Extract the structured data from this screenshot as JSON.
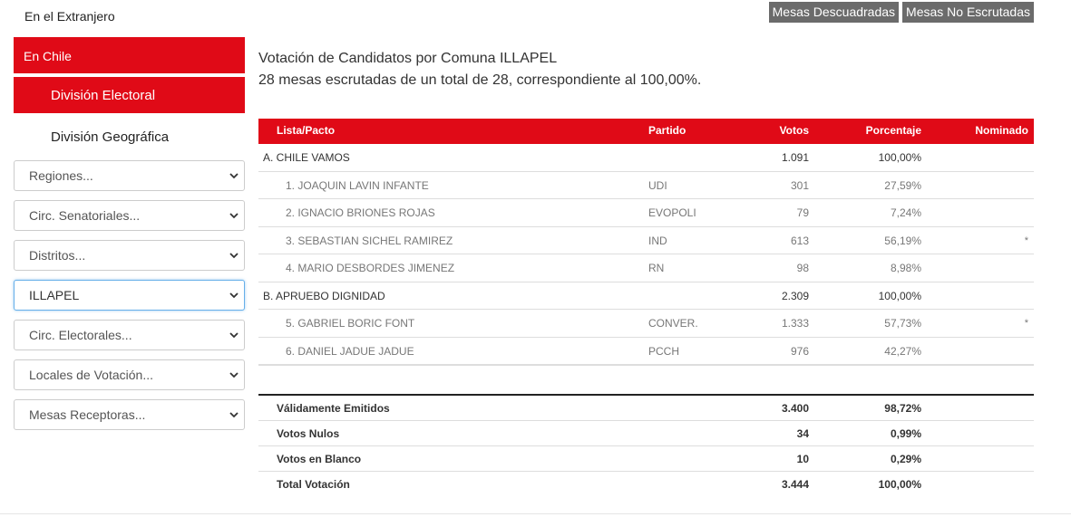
{
  "sidebar": {
    "abroad_label": "En el Extranjero",
    "chile_label": "En Chile",
    "division_electoral_label": "División Electoral",
    "division_geografica_label": "División Geográfica",
    "selects": [
      {
        "label": "Regiones..."
      },
      {
        "label": "Circ. Senatoriales..."
      },
      {
        "label": "Distritos..."
      },
      {
        "label": "ILLAPEL"
      },
      {
        "label": "Circ. Electorales..."
      },
      {
        "label": "Locales de Votación..."
      },
      {
        "label": "Mesas Receptoras..."
      }
    ]
  },
  "top_buttons": {
    "descuadradas": "Mesas Descuadradas",
    "no_escrutadas": "Mesas No Escrutadas"
  },
  "heading": {
    "title": "Votación de Candidatos por Comuna ILLAPEL",
    "subtitle": "28 mesas escrutadas de un total de 28, correspondiente al 100,00%."
  },
  "table": {
    "headers": {
      "lista": "Lista/Pacto",
      "partido": "Partido",
      "votos": "Votos",
      "porcentaje": "Porcentaje",
      "nominado": "Nominado"
    },
    "rows": [
      {
        "name": "A. CHILE VAMOS",
        "partido": "",
        "votos": "1.091",
        "porcentaje": "100,00%",
        "nominado": ""
      },
      {
        "name": "1. JOAQUIN LAVIN INFANTE",
        "partido": "UDI",
        "votos": "301",
        "porcentaje": "27,59%",
        "nominado": ""
      },
      {
        "name": "2. IGNACIO BRIONES ROJAS",
        "partido": "EVOPOLI",
        "votos": "79",
        "porcentaje": "7,24%",
        "nominado": ""
      },
      {
        "name": "3. SEBASTIAN SICHEL RAMIREZ",
        "partido": "IND",
        "votos": "613",
        "porcentaje": "56,19%",
        "nominado": "*"
      },
      {
        "name": "4. MARIO DESBORDES JIMENEZ",
        "partido": "RN",
        "votos": "98",
        "porcentaje": "8,98%",
        "nominado": ""
      },
      {
        "name": "B. APRUEBO DIGNIDAD",
        "partido": "",
        "votos": "2.309",
        "porcentaje": "100,00%",
        "nominado": ""
      },
      {
        "name": "5. GABRIEL BORIC FONT",
        "partido": "CONVER.",
        "votos": "1.333",
        "porcentaje": "57,73%",
        "nominado": "*"
      },
      {
        "name": "6. DANIEL JADUE JADUE",
        "partido": "PCCH",
        "votos": "976",
        "porcentaje": "42,27%",
        "nominado": ""
      }
    ],
    "totals": [
      {
        "label": "Válidamente Emitidos",
        "votos": "3.400",
        "porcentaje": "98,72%"
      },
      {
        "label": "Votos Nulos",
        "votos": "34",
        "porcentaje": "0,99%"
      },
      {
        "label": "Votos en Blanco",
        "votos": "10",
        "porcentaje": "0,29%"
      },
      {
        "label": "Total Votación",
        "votos": "3.444",
        "porcentaje": "100,00%"
      }
    ]
  },
  "colors": {
    "accent_red": "#e00a17",
    "button_gray": "#6b6b6b"
  }
}
